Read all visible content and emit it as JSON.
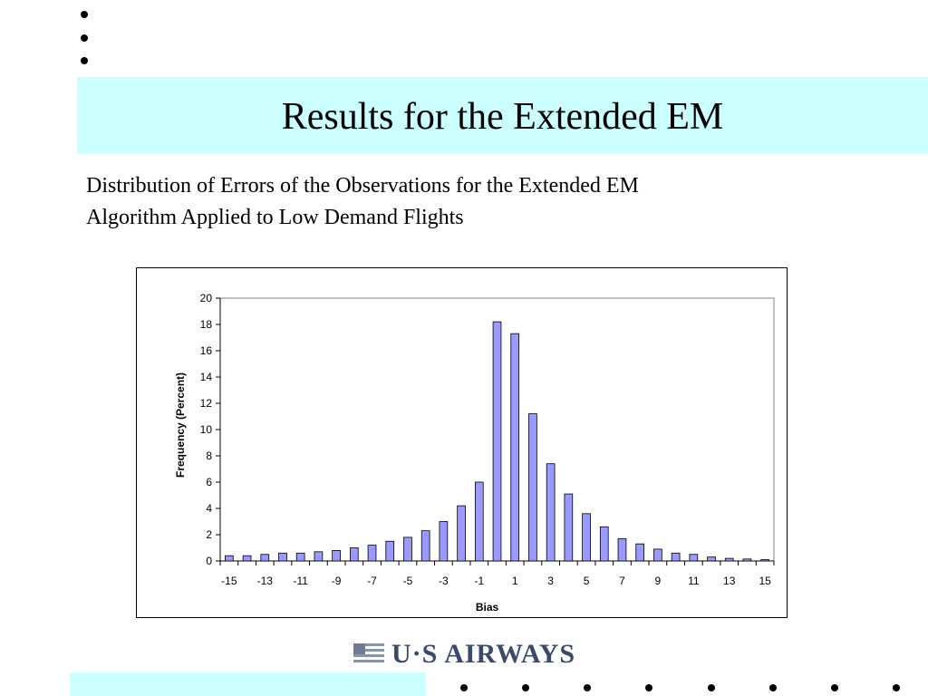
{
  "slide": {
    "title": "Results for the Extended EM",
    "subtitle_line1": "Distribution of Errors of the Observations for the Extended EM",
    "subtitle_line2": "Algorithm Applied to Low Demand Flights",
    "logo_text": "U·S AIRWAYS",
    "accent_color": "#ccffff",
    "logo_icon": "flag-stripes-icon"
  },
  "chart_data": {
    "type": "bar",
    "title": "",
    "xlabel": "Bias",
    "ylabel": "Frequency (Percent)",
    "ylim": [
      0,
      20
    ],
    "yticks": [
      0,
      2,
      4,
      6,
      8,
      10,
      12,
      14,
      16,
      18,
      20
    ],
    "xtick_labels": [
      "-15",
      "-13",
      "-11",
      "-9",
      "-7",
      "-5",
      "-3",
      "-1",
      "1",
      "3",
      "5",
      "7",
      "9",
      "11",
      "13",
      "15"
    ],
    "categories": [
      -15,
      -14,
      -13,
      -12,
      -11,
      -10,
      -9,
      -8,
      -7,
      -6,
      -5,
      -4,
      -3,
      -2,
      -1,
      0,
      1,
      2,
      3,
      4,
      5,
      6,
      7,
      8,
      9,
      10,
      11,
      12,
      13,
      14,
      15
    ],
    "values": [
      0.4,
      0.4,
      0.5,
      0.6,
      0.6,
      0.7,
      0.8,
      1.0,
      1.2,
      1.5,
      1.8,
      2.3,
      3.0,
      4.2,
      6.0,
      18.2,
      17.3,
      11.2,
      7.4,
      5.1,
      3.6,
      2.6,
      1.7,
      1.3,
      0.9,
      0.6,
      0.5,
      0.3,
      0.2,
      0.15,
      0.1
    ],
    "bar_color": "#9999ff",
    "grid": false,
    "legend": "none"
  }
}
